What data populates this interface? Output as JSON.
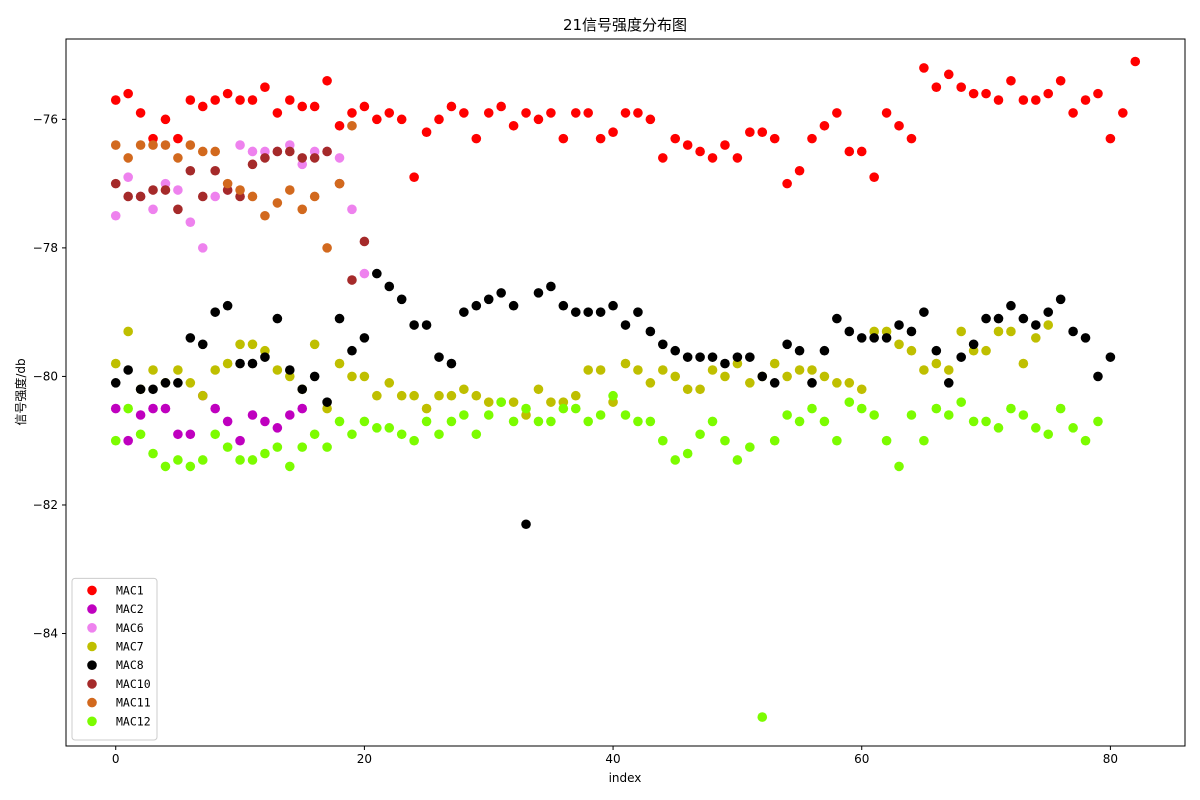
{
  "chart_data": {
    "type": "scatter",
    "title": "21信号强度分布图",
    "xlabel": "index",
    "ylabel": "信号强度/db",
    "xlim": [
      -4,
      86
    ],
    "ylim": [
      -85.75,
      -74.75
    ],
    "xticks": [
      0,
      20,
      40,
      60,
      80
    ],
    "yticks": [
      -76,
      -78,
      -80,
      -82,
      -84
    ],
    "grid": false,
    "legend_position": "lower-left",
    "series": [
      {
        "name": "MAC1",
        "color": "#ff0000",
        "x": [
          0,
          1,
          2,
          3,
          4,
          5,
          6,
          7,
          8,
          9,
          10,
          11,
          12,
          13,
          14,
          15,
          16,
          17,
          18,
          19,
          20,
          21,
          22,
          23,
          24,
          25,
          26,
          27,
          28,
          29,
          30,
          31,
          32,
          33,
          34,
          35,
          36,
          37,
          38,
          39,
          40,
          41,
          42,
          43,
          44,
          45,
          46,
          47,
          48,
          49,
          50,
          51,
          52,
          53,
          54,
          55,
          56,
          57,
          58,
          59,
          60,
          61,
          62,
          63,
          64,
          65,
          66,
          67,
          68,
          69,
          70,
          71,
          72,
          73,
          74,
          75,
          76,
          77,
          78,
          79,
          80,
          81,
          82
        ],
        "y": [
          -75.7,
          -75.6,
          -75.9,
          -76.3,
          -76.0,
          -76.3,
          -75.7,
          -75.8,
          -75.7,
          -75.6,
          -75.7,
          -75.7,
          -75.5,
          -75.9,
          -75.7,
          -75.8,
          -75.8,
          -75.4,
          -76.1,
          -75.9,
          -75.8,
          -76.0,
          -75.9,
          -76.0,
          -76.9,
          -76.2,
          -76.0,
          -75.8,
          -75.9,
          -76.3,
          -75.9,
          -75.8,
          -76.1,
          -75.9,
          -76.0,
          -75.9,
          -76.3,
          -75.9,
          -75.9,
          -76.3,
          -76.2,
          -75.9,
          -75.9,
          -76.0,
          -76.6,
          -76.3,
          -76.4,
          -76.5,
          -76.6,
          -76.4,
          -76.6,
          -76.2,
          -76.2,
          -76.3,
          -77.0,
          -76.8,
          -76.3,
          -76.1,
          -75.9,
          -76.5,
          -76.5,
          -76.9,
          -75.9,
          -76.1,
          -76.3,
          -75.2,
          -75.5,
          -75.3,
          -75.5,
          -75.6,
          -75.6,
          -75.7,
          -75.4,
          -75.7,
          -75.7,
          -75.6,
          -75.4,
          -75.9,
          -75.7,
          -75.6,
          -76.3,
          -75.9,
          -75.1
        ]
      },
      {
        "name": "MAC2",
        "color": "#bf00bf",
        "x": [
          0,
          1,
          2,
          3,
          4,
          5,
          6,
          7,
          8,
          9,
          10,
          11,
          12,
          13,
          14,
          15
        ],
        "y": [
          -80.5,
          -81.0,
          -80.6,
          -80.5,
          -80.5,
          -80.9,
          -80.9,
          -80.3,
          -80.5,
          -80.7,
          -81.0,
          -80.6,
          -80.7,
          -80.8,
          -80.6,
          -80.5
        ]
      },
      {
        "name": "MAC6",
        "color": "#ee82ee",
        "x": [
          0,
          1,
          2,
          3,
          4,
          5,
          6,
          7,
          8,
          9,
          10,
          11,
          12,
          13,
          14,
          15,
          16,
          17,
          18,
          19,
          20
        ],
        "y": [
          -77.5,
          -76.9,
          -77.2,
          -77.4,
          -77.0,
          -77.1,
          -77.6,
          -78.0,
          -77.2,
          -77.1,
          -76.4,
          -76.5,
          -76.5,
          -76.5,
          -76.4,
          -76.7,
          -76.5,
          -76.5,
          -76.6,
          -77.4,
          -78.4
        ]
      },
      {
        "name": "MAC7",
        "color": "#bfbf00",
        "x": [
          0,
          1,
          2,
          3,
          4,
          5,
          6,
          7,
          8,
          9,
          10,
          11,
          12,
          13,
          14,
          15,
          16,
          17,
          18,
          19,
          20,
          21,
          22,
          23,
          24,
          25,
          26,
          27,
          28,
          29,
          30,
          31,
          32,
          33,
          34,
          35,
          36,
          37,
          38,
          39,
          40,
          41,
          42,
          43,
          44,
          45,
          46,
          47,
          48,
          49,
          50,
          51,
          52,
          53,
          54,
          55,
          56,
          57,
          58,
          59,
          60,
          61,
          62,
          63,
          64,
          65,
          66,
          67,
          68,
          69,
          70,
          71,
          72,
          73,
          74,
          75
        ],
        "y": [
          -79.8,
          -79.3,
          -80.2,
          -79.9,
          -80.1,
          -79.9,
          -80.1,
          -80.3,
          -79.9,
          -79.8,
          -79.5,
          -79.5,
          -79.6,
          -79.9,
          -80.0,
          -80.2,
          -79.5,
          -80.5,
          -79.8,
          -80.0,
          -80.0,
          -80.3,
          -80.1,
          -80.3,
          -80.3,
          -80.5,
          -80.3,
          -80.3,
          -80.2,
          -80.3,
          -80.4,
          -80.4,
          -80.4,
          -80.6,
          -80.2,
          -80.4,
          -80.4,
          -80.3,
          -79.9,
          -79.9,
          -80.4,
          -79.8,
          -79.9,
          -80.1,
          -79.9,
          -80.0,
          -80.2,
          -80.2,
          -79.9,
          -80.0,
          -79.8,
          -80.1,
          -80.0,
          -79.8,
          -80.0,
          -79.9,
          -79.9,
          -80.0,
          -80.1,
          -80.1,
          -80.2,
          -79.3,
          -79.3,
          -79.5,
          -79.6,
          -79.9,
          -79.8,
          -79.9,
          -79.3,
          -79.6,
          -79.6,
          -79.3,
          -79.3,
          -79.8,
          -79.4,
          -79.2
        ]
      },
      {
        "name": "MAC8",
        "color": "#000000",
        "x": [
          0,
          1,
          2,
          3,
          4,
          5,
          6,
          7,
          8,
          9,
          10,
          11,
          12,
          13,
          14,
          15,
          16,
          17,
          18,
          19,
          20,
          21,
          22,
          23,
          24,
          25,
          26,
          27,
          28,
          29,
          30,
          31,
          32,
          33,
          34,
          35,
          36,
          37,
          38,
          39,
          40,
          41,
          42,
          43,
          44,
          45,
          46,
          47,
          48,
          49,
          50,
          51,
          52,
          53,
          54,
          55,
          56,
          57,
          58,
          59,
          60,
          61,
          62,
          63,
          64,
          65,
          66,
          67,
          68,
          69,
          70,
          71,
          72,
          73,
          74,
          75,
          76,
          77,
          78,
          79,
          80
        ],
        "y": [
          -80.1,
          -79.9,
          -80.2,
          -80.2,
          -80.1,
          -80.1,
          -79.4,
          -79.5,
          -79.0,
          -78.9,
          -79.8,
          -79.8,
          -79.7,
          -79.1,
          -79.9,
          -80.2,
          -80.0,
          -80.4,
          -79.1,
          -79.6,
          -79.4,
          -78.4,
          -78.6,
          -78.8,
          -79.2,
          -79.2,
          -79.7,
          -79.8,
          -79.0,
          -78.9,
          -78.8,
          -78.7,
          -78.9,
          -82.3,
          -78.7,
          -78.6,
          -78.9,
          -79.0,
          -79.0,
          -79.0,
          -78.9,
          -79.2,
          -79.0,
          -79.3,
          -79.5,
          -79.6,
          -79.7,
          -79.7,
          -79.7,
          -79.8,
          -79.7,
          -79.7,
          -80.0,
          -80.1,
          -79.5,
          -79.6,
          -80.1,
          -79.6,
          -79.1,
          -79.3,
          -79.4,
          -79.4,
          -79.4,
          -79.2,
          -79.3,
          -79.0,
          -79.6,
          -80.1,
          -79.7,
          -79.5,
          -79.1,
          -79.1,
          -78.9,
          -79.1,
          -79.2,
          -79.0,
          -78.8,
          -79.3,
          -79.4,
          -80.0,
          -79.7
        ]
      },
      {
        "name": "MAC10",
        "color": "#a52a2a",
        "x": [
          0,
          1,
          2,
          3,
          4,
          5,
          6,
          7,
          8,
          9,
          10,
          11,
          12,
          13,
          14,
          15,
          16,
          17,
          18,
          19,
          20
        ],
        "y": [
          -77.0,
          -77.2,
          -77.2,
          -77.1,
          -77.1,
          -77.4,
          -76.8,
          -77.2,
          -76.8,
          -77.1,
          -77.2,
          -76.7,
          -76.6,
          -76.5,
          -76.5,
          -76.6,
          -76.6,
          -76.5,
          -77.0,
          -78.5,
          -77.9
        ]
      },
      {
        "name": "MAC11",
        "color": "#d2691e",
        "x": [
          0,
          1,
          2,
          3,
          4,
          5,
          6,
          7,
          8,
          9,
          10,
          11,
          12,
          13,
          14,
          15,
          16,
          17,
          18,
          19
        ],
        "y": [
          -76.4,
          -76.6,
          -76.4,
          -76.4,
          -76.4,
          -76.6,
          -76.4,
          -76.5,
          -76.5,
          -77.0,
          -77.1,
          -77.2,
          -77.5,
          -77.3,
          -77.1,
          -77.4,
          -77.2,
          -78.0,
          -77.0,
          -76.1
        ]
      },
      {
        "name": "MAC12",
        "color": "#7cfc00",
        "x": [
          0,
          1,
          2,
          3,
          4,
          5,
          6,
          7,
          8,
          9,
          10,
          11,
          12,
          13,
          14,
          15,
          16,
          17,
          18,
          19,
          20,
          21,
          22,
          23,
          24,
          25,
          26,
          27,
          28,
          29,
          30,
          31,
          32,
          33,
          34,
          35,
          36,
          37,
          38,
          39,
          40,
          41,
          42,
          43,
          44,
          45,
          46,
          47,
          48,
          49,
          50,
          51,
          52,
          53,
          54,
          55,
          56,
          57,
          58,
          59,
          60,
          61,
          62,
          63,
          64,
          65,
          66,
          67,
          68,
          69,
          70,
          71,
          72,
          73,
          74,
          75,
          76,
          77,
          78,
          79
        ],
        "y": [
          -81.0,
          -80.5,
          -80.9,
          -81.2,
          -81.4,
          -81.3,
          -81.4,
          -81.3,
          -80.9,
          -81.1,
          -81.3,
          -81.3,
          -81.2,
          -81.1,
          -81.4,
          -81.1,
          -80.9,
          -81.1,
          -80.7,
          -80.9,
          -80.7,
          -80.8,
          -80.8,
          -80.9,
          -81.0,
          -80.7,
          -80.9,
          -80.7,
          -80.6,
          -80.9,
          -80.6,
          -80.4,
          -80.7,
          -80.5,
          -80.7,
          -80.7,
          -80.5,
          -80.5,
          -80.7,
          -80.6,
          -80.3,
          -80.6,
          -80.7,
          -80.7,
          -81.0,
          -81.3,
          -81.2,
          -80.9,
          -80.7,
          -81.0,
          -81.3,
          -81.1,
          -85.3,
          -81.0,
          -80.6,
          -80.7,
          -80.5,
          -80.7,
          -81.0,
          -80.4,
          -80.5,
          -80.6,
          -81.0,
          -81.4,
          -80.6,
          -81.0,
          -80.5,
          -80.6,
          -80.4,
          -80.7,
          -80.7,
          -80.8,
          -80.5,
          -80.6,
          -80.8,
          -80.9,
          -80.5,
          -80.8,
          -81.0,
          -80.7
        ]
      }
    ]
  }
}
